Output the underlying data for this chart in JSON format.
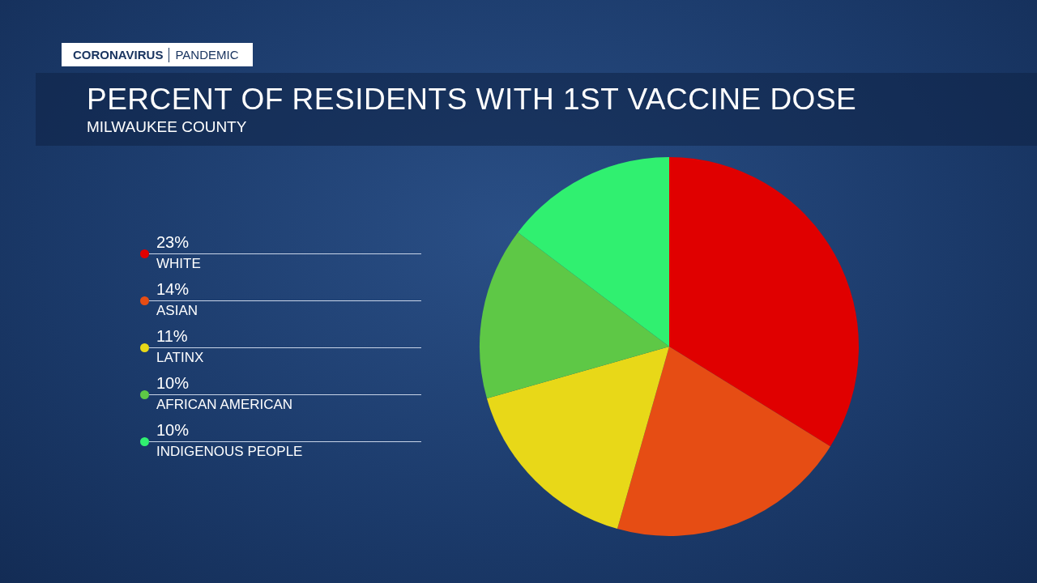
{
  "chart_data": {
    "type": "pie",
    "title": "PERCENT OF RESIDENTS WITH 1ST VACCINE DOSE",
    "subtitle": "MILWAUKEE COUNTY",
    "annotations": [
      "CORONAVIRUS",
      "PANDEMIC"
    ],
    "categories": [
      "WHITE",
      "ASIAN",
      "LATINX",
      "AFRICAN AMERICAN",
      "INDIGENOUS PEOPLE"
    ],
    "values": [
      23,
      14,
      11,
      10,
      10
    ],
    "value_labels": [
      "23%",
      "14%",
      "11%",
      "10%",
      "10%"
    ],
    "colors": [
      "#e00000",
      "#e64d14",
      "#e8d818",
      "#5ec846",
      "#30f070"
    ],
    "legend": "left"
  }
}
